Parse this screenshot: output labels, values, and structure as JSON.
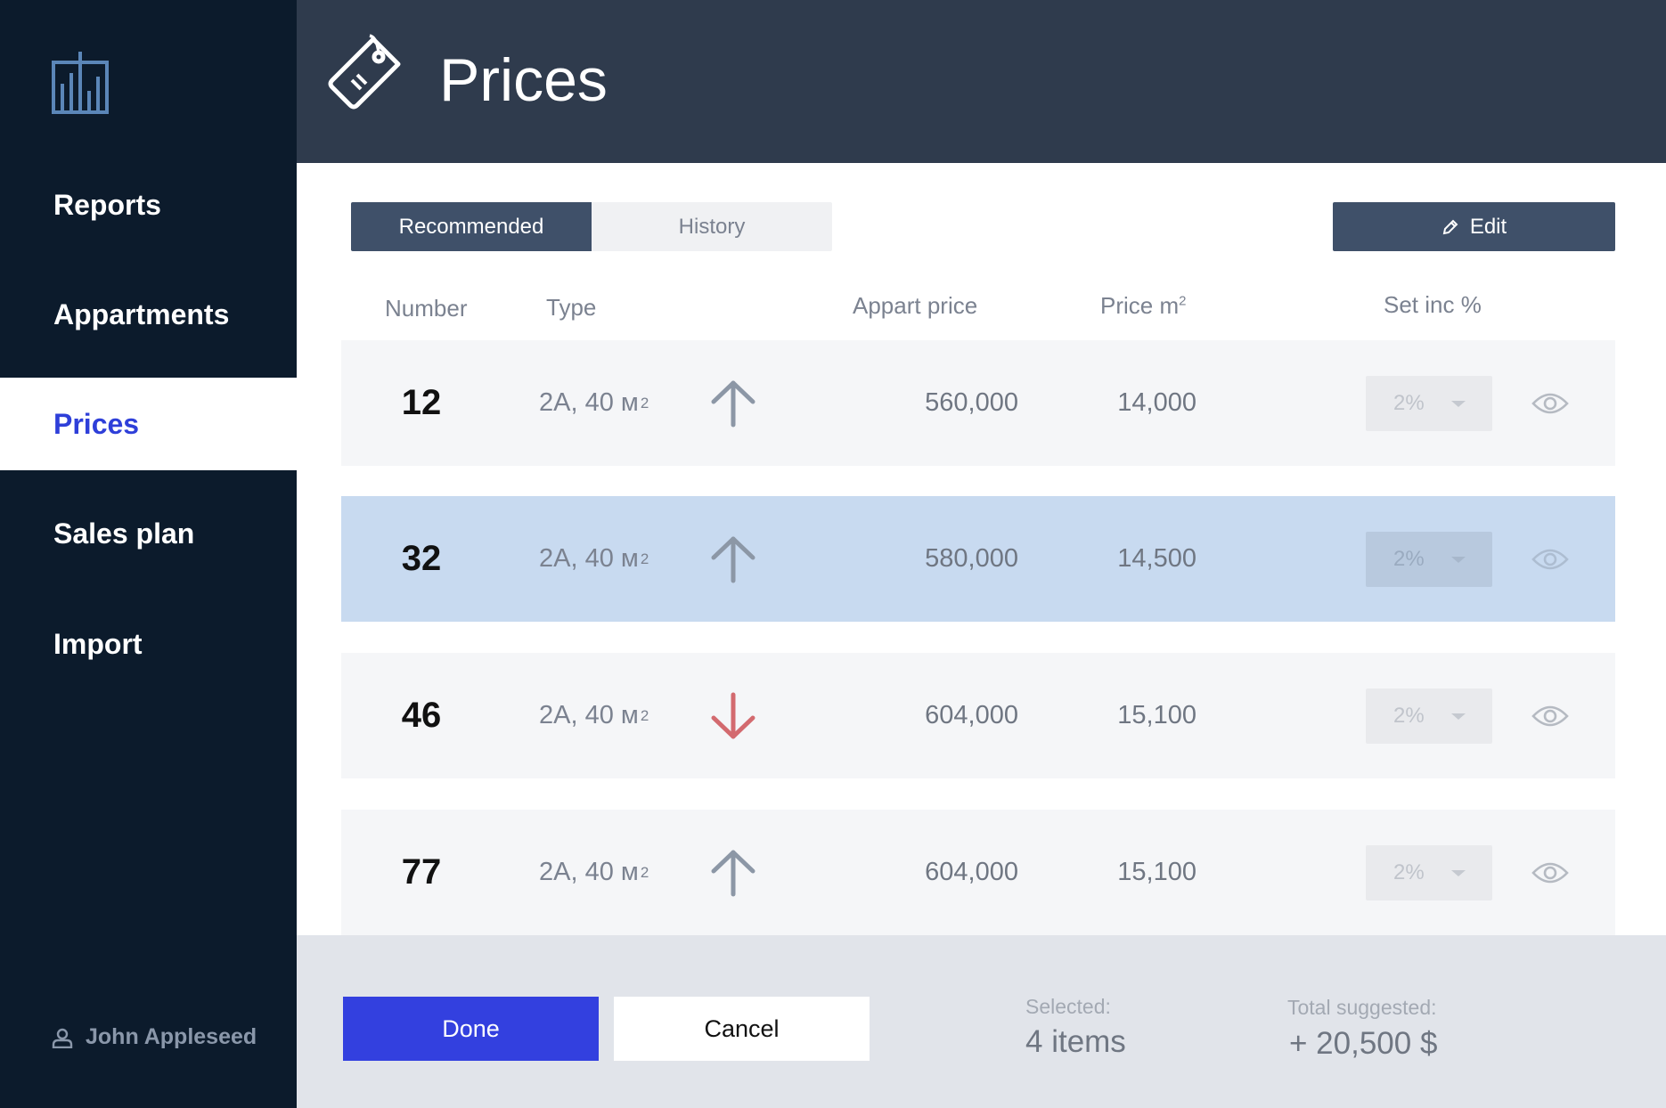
{
  "sidebar": {
    "logo_icon": "bar-chart-building-icon",
    "items": [
      {
        "label": "Reports",
        "active": false
      },
      {
        "label": "Appartments",
        "active": false
      },
      {
        "label": "Prices",
        "active": true
      },
      {
        "label": "Sales plan",
        "active": false
      },
      {
        "label": "Import",
        "active": false
      }
    ],
    "user": {
      "name": "John Appleseed",
      "icon": "user-icon"
    }
  },
  "header": {
    "title": "Prices",
    "icon": "price-tag-icon"
  },
  "tabs": [
    {
      "label": "Recommended",
      "active": true
    },
    {
      "label": "History",
      "active": false
    }
  ],
  "edit_button": {
    "label": "Edit",
    "icon": "pencil-icon"
  },
  "columns": {
    "number": "Number",
    "type": "Type",
    "appart_price": "Appart price",
    "price_m2": "Price m",
    "price_m2_sup": "2",
    "set_inc": "Set inc %"
  },
  "rows": [
    {
      "number": "12",
      "type": "2А, 40 м",
      "type_sup": "2",
      "trend": "up",
      "appart_price": "560,000",
      "price_m2": "14,000",
      "inc": "2%",
      "selected": false
    },
    {
      "number": "32",
      "type": "2А, 40 м",
      "type_sup": "2",
      "trend": "up",
      "appart_price": "580,000",
      "price_m2": "14,500",
      "inc": "2%",
      "selected": true
    },
    {
      "number": "46",
      "type": "2А, 40 м",
      "type_sup": "2",
      "trend": "down",
      "appart_price": "604,000",
      "price_m2": "15,100",
      "inc": "2%",
      "selected": false
    },
    {
      "number": "77",
      "type": "2А, 40 м",
      "type_sup": "2",
      "trend": "up",
      "appart_price": "604,000",
      "price_m2": "15,100",
      "inc": "2%",
      "selected": false
    }
  ],
  "footer": {
    "done_label": "Done",
    "cancel_label": "Cancel",
    "selected_label": "Selected:",
    "selected_value": "4 items",
    "total_label": "Total suggested:",
    "total_value": "+ 20,500 $"
  },
  "colors": {
    "sidebar_bg": "#0c1b2c",
    "header_bg": "#2f3b4d",
    "accent": "#3340df",
    "active_nav_text": "#2e3fd9",
    "selected_row": "#c8daf0",
    "arrow_up": "#8c97a6",
    "arrow_down": "#d36a6f"
  }
}
